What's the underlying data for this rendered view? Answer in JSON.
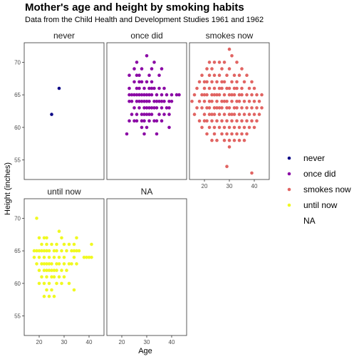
{
  "chart_data": {
    "type": "scatter",
    "title": "Mother's age and height by smoking habits",
    "subtitle": "Data from the Child Health and Development Studies 1961 and 1962",
    "xlabel": "Age",
    "ylabel": "Height (inches)",
    "xlim": [
      14,
      46
    ],
    "ylim": [
      52,
      73
    ],
    "xticks": [
      20,
      30,
      40
    ],
    "yticks": [
      55,
      60,
      65,
      70
    ],
    "grid": false,
    "legend_placement": "right",
    "colors": {
      "never": "#0d0887",
      "once did": "#8b0aa5",
      "smokes now": "#e16462",
      "until now": "#f0f921"
    },
    "panels": [
      {
        "name": "never",
        "points": [
          [
            25,
            62
          ],
          [
            28,
            66
          ]
        ]
      },
      {
        "name": "once did",
        "points": [
          [
            22,
            59
          ],
          [
            23,
            61
          ],
          [
            23,
            64
          ],
          [
            23,
            65
          ],
          [
            23,
            66
          ],
          [
            23,
            68
          ],
          [
            24,
            62
          ],
          [
            24,
            64
          ],
          [
            24,
            65
          ],
          [
            25,
            61
          ],
          [
            25,
            63
          ],
          [
            25,
            65
          ],
          [
            25,
            67
          ],
          [
            25,
            69
          ],
          [
            26,
            61
          ],
          [
            26,
            62
          ],
          [
            26,
            64
          ],
          [
            26,
            65
          ],
          [
            26,
            66
          ],
          [
            26,
            68
          ],
          [
            26,
            70
          ],
          [
            27,
            63
          ],
          [
            27,
            64
          ],
          [
            27,
            65
          ],
          [
            27,
            66
          ],
          [
            27,
            67
          ],
          [
            27,
            68
          ],
          [
            28,
            60
          ],
          [
            28,
            61
          ],
          [
            28,
            62
          ],
          [
            28,
            64
          ],
          [
            28,
            65
          ],
          [
            28,
            67
          ],
          [
            28,
            69
          ],
          [
            29,
            59
          ],
          [
            29,
            61
          ],
          [
            29,
            62
          ],
          [
            29,
            63
          ],
          [
            29,
            64
          ],
          [
            29,
            65
          ],
          [
            29,
            66
          ],
          [
            30,
            60
          ],
          [
            30,
            62
          ],
          [
            30,
            63
          ],
          [
            30,
            64
          ],
          [
            30,
            65
          ],
          [
            30,
            67
          ],
          [
            30,
            71
          ],
          [
            31,
            61
          ],
          [
            31,
            62
          ],
          [
            31,
            63
          ],
          [
            31,
            64
          ],
          [
            31,
            65
          ],
          [
            31,
            66
          ],
          [
            31,
            68
          ],
          [
            32,
            62
          ],
          [
            32,
            63
          ],
          [
            32,
            65
          ],
          [
            32,
            66
          ],
          [
            32,
            67
          ],
          [
            32,
            69
          ],
          [
            33,
            61
          ],
          [
            33,
            63
          ],
          [
            33,
            64
          ],
          [
            33,
            66
          ],
          [
            33,
            70
          ],
          [
            34,
            59
          ],
          [
            34,
            61
          ],
          [
            34,
            63
          ],
          [
            34,
            64
          ],
          [
            34,
            65
          ],
          [
            35,
            62
          ],
          [
            35,
            64
          ],
          [
            35,
            66
          ],
          [
            35,
            68
          ],
          [
            36,
            61
          ],
          [
            36,
            63
          ],
          [
            36,
            64
          ],
          [
            36,
            65
          ],
          [
            36,
            69
          ],
          [
            37,
            62
          ],
          [
            37,
            64
          ],
          [
            37,
            66
          ],
          [
            38,
            63
          ],
          [
            38,
            65
          ],
          [
            39,
            60
          ],
          [
            39,
            62
          ],
          [
            39,
            63
          ],
          [
            39,
            64
          ],
          [
            40,
            64
          ],
          [
            40,
            65
          ],
          [
            42,
            65
          ],
          [
            43,
            65
          ]
        ]
      },
      {
        "name": "smokes now",
        "points": [
          [
            15,
            64
          ],
          [
            16,
            62
          ],
          [
            16,
            65
          ],
          [
            17,
            63
          ],
          [
            17,
            66
          ],
          [
            18,
            61
          ],
          [
            18,
            64
          ],
          [
            18,
            67
          ],
          [
            19,
            60
          ],
          [
            19,
            63
          ],
          [
            19,
            65
          ],
          [
            19,
            68
          ],
          [
            20,
            61
          ],
          [
            20,
            62
          ],
          [
            20,
            64
          ],
          [
            20,
            65
          ],
          [
            20,
            66
          ],
          [
            20,
            67
          ],
          [
            21,
            59
          ],
          [
            21,
            61
          ],
          [
            21,
            63
          ],
          [
            21,
            65
          ],
          [
            21,
            67
          ],
          [
            21,
            69
          ],
          [
            22,
            60
          ],
          [
            22,
            62
          ],
          [
            22,
            63
          ],
          [
            22,
            64
          ],
          [
            22,
            66
          ],
          [
            22,
            68
          ],
          [
            22,
            70
          ],
          [
            23,
            58
          ],
          [
            23,
            61
          ],
          [
            23,
            62
          ],
          [
            23,
            64
          ],
          [
            23,
            65
          ],
          [
            23,
            67
          ],
          [
            23,
            69
          ],
          [
            24,
            59
          ],
          [
            24,
            60
          ],
          [
            24,
            62
          ],
          [
            24,
            63
          ],
          [
            24,
            65
          ],
          [
            24,
            66
          ],
          [
            24,
            68
          ],
          [
            24,
            70
          ],
          [
            25,
            58
          ],
          [
            25,
            61
          ],
          [
            25,
            63
          ],
          [
            25,
            64
          ],
          [
            25,
            65
          ],
          [
            25,
            67
          ],
          [
            26,
            60
          ],
          [
            26,
            62
          ],
          [
            26,
            63
          ],
          [
            26,
            65
          ],
          [
            26,
            66
          ],
          [
            26,
            68
          ],
          [
            26,
            70
          ],
          [
            27,
            59
          ],
          [
            27,
            61
          ],
          [
            27,
            63
          ],
          [
            27,
            64
          ],
          [
            27,
            66
          ],
          [
            27,
            67
          ],
          [
            27,
            69
          ],
          [
            28,
            58
          ],
          [
            28,
            60
          ],
          [
            28,
            62
          ],
          [
            28,
            64
          ],
          [
            28,
            65
          ],
          [
            28,
            67
          ],
          [
            28,
            70
          ],
          [
            29,
            54
          ],
          [
            29,
            59
          ],
          [
            29,
            61
          ],
          [
            29,
            63
          ],
          [
            29,
            64
          ],
          [
            29,
            66
          ],
          [
            29,
            68
          ],
          [
            30,
            57
          ],
          [
            30,
            58
          ],
          [
            30,
            60
          ],
          [
            30,
            62
          ],
          [
            30,
            63
          ],
          [
            30,
            65
          ],
          [
            30,
            66
          ],
          [
            30,
            69
          ],
          [
            30,
            72
          ],
          [
            31,
            59
          ],
          [
            31,
            61
          ],
          [
            31,
            62
          ],
          [
            31,
            64
          ],
          [
            31,
            65
          ],
          [
            31,
            67
          ],
          [
            31,
            71
          ],
          [
            32,
            58
          ],
          [
            32,
            60
          ],
          [
            32,
            62
          ],
          [
            32,
            63
          ],
          [
            32,
            65
          ],
          [
            32,
            66
          ],
          [
            32,
            68
          ],
          [
            33,
            59
          ],
          [
            33,
            61
          ],
          [
            33,
            63
          ],
          [
            33,
            64
          ],
          [
            33,
            66
          ],
          [
            33,
            67
          ],
          [
            33,
            70
          ],
          [
            34,
            58
          ],
          [
            34,
            60
          ],
          [
            34,
            62
          ],
          [
            34,
            64
          ],
          [
            34,
            65
          ],
          [
            34,
            68
          ],
          [
            35,
            59
          ],
          [
            35,
            61
          ],
          [
            35,
            63
          ],
          [
            35,
            65
          ],
          [
            35,
            66
          ],
          [
            35,
            69
          ],
          [
            36,
            58
          ],
          [
            36,
            60
          ],
          [
            36,
            62
          ],
          [
            36,
            64
          ],
          [
            36,
            67
          ],
          [
            37,
            59
          ],
          [
            37,
            61
          ],
          [
            37,
            63
          ],
          [
            37,
            65
          ],
          [
            37,
            68
          ],
          [
            38,
            60
          ],
          [
            38,
            62
          ],
          [
            38,
            64
          ],
          [
            38,
            66
          ],
          [
            39,
            53
          ],
          [
            39,
            61
          ],
          [
            39,
            63
          ],
          [
            39,
            65
          ],
          [
            39,
            67
          ],
          [
            40,
            60
          ],
          [
            40,
            62
          ],
          [
            40,
            64
          ],
          [
            40,
            66
          ],
          [
            41,
            61
          ],
          [
            41,
            63
          ],
          [
            41,
            65
          ],
          [
            42,
            62
          ],
          [
            42,
            64
          ],
          [
            43,
            63
          ],
          [
            43,
            65
          ]
        ]
      },
      {
        "name": "until now",
        "points": [
          [
            18,
            64
          ],
          [
            18,
            65
          ],
          [
            19,
            63
          ],
          [
            19,
            65
          ],
          [
            19,
            70
          ],
          [
            20,
            60
          ],
          [
            20,
            62
          ],
          [
            20,
            64
          ],
          [
            20,
            65
          ],
          [
            20,
            67
          ],
          [
            21,
            61
          ],
          [
            21,
            63
          ],
          [
            21,
            65
          ],
          [
            21,
            66
          ],
          [
            22,
            58
          ],
          [
            22,
            60
          ],
          [
            22,
            62
          ],
          [
            22,
            63
          ],
          [
            22,
            64
          ],
          [
            22,
            65
          ],
          [
            22,
            67
          ],
          [
            23,
            59
          ],
          [
            23,
            61
          ],
          [
            23,
            62
          ],
          [
            23,
            63
          ],
          [
            23,
            65
          ],
          [
            23,
            66
          ],
          [
            23,
            67
          ],
          [
            24,
            58
          ],
          [
            24,
            60
          ],
          [
            24,
            62
          ],
          [
            24,
            63
          ],
          [
            24,
            64
          ],
          [
            24,
            65
          ],
          [
            25,
            59
          ],
          [
            25,
            61
          ],
          [
            25,
            62
          ],
          [
            25,
            63
          ],
          [
            25,
            66
          ],
          [
            26,
            58
          ],
          [
            26,
            61
          ],
          [
            26,
            62
          ],
          [
            26,
            64
          ],
          [
            26,
            65
          ],
          [
            27,
            60
          ],
          [
            27,
            62
          ],
          [
            27,
            63
          ],
          [
            27,
            65
          ],
          [
            27,
            66
          ],
          [
            28,
            61
          ],
          [
            28,
            63
          ],
          [
            28,
            64
          ],
          [
            28,
            68
          ],
          [
            29,
            60
          ],
          [
            29,
            62
          ],
          [
            29,
            65
          ],
          [
            29,
            67
          ],
          [
            30,
            61
          ],
          [
            30,
            63
          ],
          [
            30,
            64
          ],
          [
            30,
            66
          ],
          [
            31,
            62
          ],
          [
            31,
            65
          ],
          [
            32,
            60
          ],
          [
            32,
            63
          ],
          [
            32,
            66
          ],
          [
            33,
            63
          ],
          [
            33,
            65
          ],
          [
            34,
            59
          ],
          [
            34,
            64
          ],
          [
            34,
            65
          ],
          [
            34,
            66
          ],
          [
            35,
            63
          ],
          [
            35,
            65
          ],
          [
            35,
            67
          ],
          [
            36,
            65
          ],
          [
            38,
            64
          ],
          [
            39,
            64
          ],
          [
            40,
            64
          ],
          [
            41,
            64
          ],
          [
            41,
            66
          ]
        ]
      },
      {
        "name": "NA",
        "points": []
      }
    ],
    "legend": [
      "never",
      "once did",
      "smokes now",
      "until now",
      "NA"
    ]
  }
}
